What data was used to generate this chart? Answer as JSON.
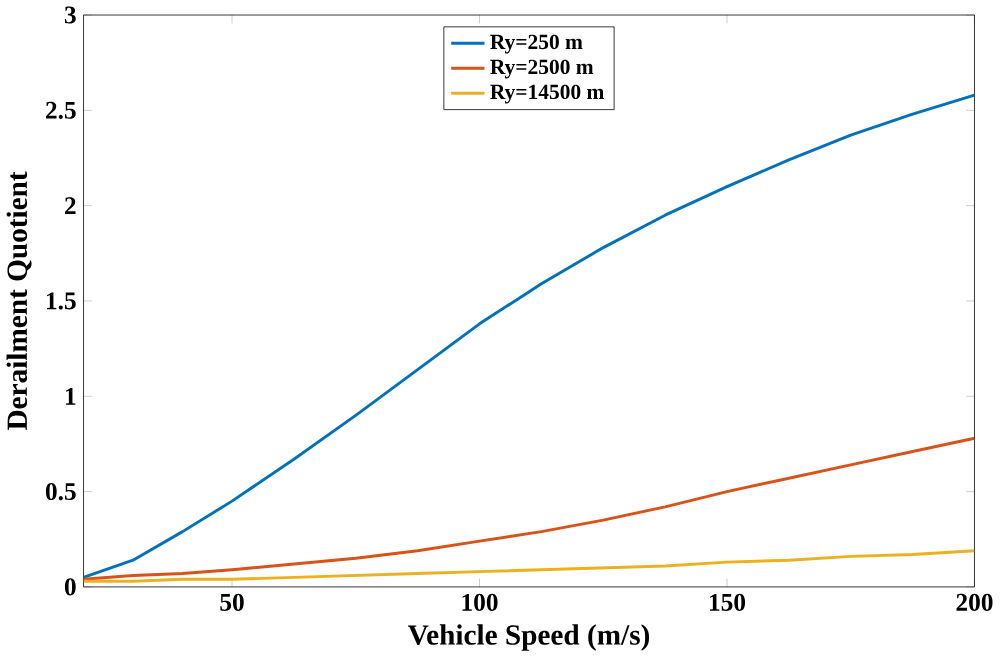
{
  "chart_data": {
    "type": "line",
    "xlabel": "Vehicle Speed (m/s)",
    "ylabel": "Derailment Quotient",
    "x": [
      20,
      30,
      40,
      50,
      62.5,
      75,
      87.5,
      100,
      112.5,
      125,
      137.5,
      150,
      162.5,
      175,
      187.5,
      200
    ],
    "series": [
      {
        "name": "Ry=250 m",
        "color": "#0072bd",
        "values": [
          0.05,
          0.14,
          0.29,
          0.45,
          0.67,
          0.9,
          1.14,
          1.38,
          1.59,
          1.78,
          1.95,
          2.1,
          2.24,
          2.37,
          2.48,
          2.58
        ]
      },
      {
        "name": "Ry=2500 m",
        "color": "#d95319",
        "values": [
          0.04,
          0.06,
          0.07,
          0.09,
          0.12,
          0.15,
          0.19,
          0.24,
          0.29,
          0.35,
          0.42,
          0.5,
          0.57,
          0.64,
          0.71,
          0.78
        ]
      },
      {
        "name": "Ry=14500 m",
        "color": "#edb120",
        "values": [
          0.03,
          0.03,
          0.04,
          0.04,
          0.05,
          0.06,
          0.07,
          0.08,
          0.09,
          0.1,
          0.11,
          0.13,
          0.14,
          0.16,
          0.17,
          0.19
        ]
      }
    ],
    "xlim": [
      20,
      200
    ],
    "ylim": [
      0,
      3
    ],
    "xticks": [
      50,
      100,
      150,
      200
    ],
    "yticks": [
      0,
      0.5,
      1,
      1.5,
      2,
      2.5,
      3
    ],
    "legend": "top",
    "grid": false,
    "marker": "none",
    "line_style": "solid"
  }
}
